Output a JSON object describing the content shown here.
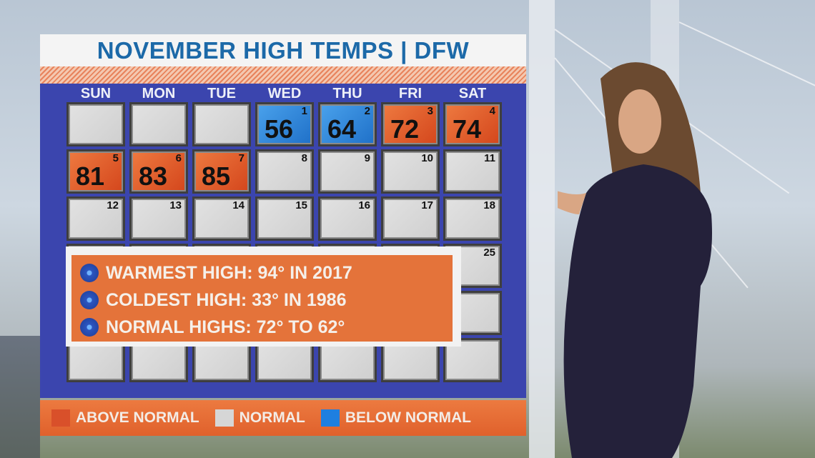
{
  "title": "NOVEMBER HIGH TEMPS | DFW",
  "days": [
    "SUN",
    "MON",
    "TUE",
    "WED",
    "THU",
    "FRI",
    "SAT"
  ],
  "colors": {
    "above": "#d9502a",
    "normal": "#d6d6d6",
    "below": "#1e7fe0",
    "panel": "#3b45ae",
    "accent": "#e4733a",
    "title": "#1c69a8"
  },
  "weeks": [
    [
      {
        "day": null,
        "temp": null,
        "status": "normal"
      },
      {
        "day": null,
        "temp": null,
        "status": "normal"
      },
      {
        "day": null,
        "temp": null,
        "status": "normal"
      },
      {
        "day": "1",
        "temp": "56",
        "status": "below"
      },
      {
        "day": "2",
        "temp": "64",
        "status": "below"
      },
      {
        "day": "3",
        "temp": "72",
        "status": "above"
      },
      {
        "day": "4",
        "temp": "74",
        "status": "above"
      }
    ],
    [
      {
        "day": "5",
        "temp": "81",
        "status": "above"
      },
      {
        "day": "6",
        "temp": "83",
        "status": "above"
      },
      {
        "day": "7",
        "temp": "85",
        "status": "above"
      },
      {
        "day": "8",
        "temp": null,
        "status": "normal"
      },
      {
        "day": "9",
        "temp": null,
        "status": "normal"
      },
      {
        "day": "10",
        "temp": null,
        "status": "normal"
      },
      {
        "day": "11",
        "temp": null,
        "status": "normal"
      }
    ],
    [
      {
        "day": "12",
        "temp": null,
        "status": "normal"
      },
      {
        "day": "13",
        "temp": null,
        "status": "normal"
      },
      {
        "day": "14",
        "temp": null,
        "status": "normal"
      },
      {
        "day": "15",
        "temp": null,
        "status": "normal"
      },
      {
        "day": "16",
        "temp": null,
        "status": "normal"
      },
      {
        "day": "17",
        "temp": null,
        "status": "normal"
      },
      {
        "day": "18",
        "temp": null,
        "status": "normal"
      }
    ],
    [
      {
        "day": null,
        "temp": null,
        "status": "normal"
      },
      {
        "day": null,
        "temp": null,
        "status": "normal"
      },
      {
        "day": null,
        "temp": null,
        "status": "normal"
      },
      {
        "day": null,
        "temp": null,
        "status": "normal"
      },
      {
        "day": null,
        "temp": null,
        "status": "normal"
      },
      {
        "day": null,
        "temp": null,
        "status": "normal"
      },
      {
        "day": "25",
        "temp": null,
        "status": "normal"
      }
    ],
    [
      {
        "day": null,
        "temp": null,
        "status": "normal"
      },
      {
        "day": null,
        "temp": null,
        "status": "normal"
      },
      {
        "day": null,
        "temp": null,
        "status": "normal"
      },
      {
        "day": null,
        "temp": null,
        "status": "normal"
      },
      {
        "day": null,
        "temp": null,
        "status": "normal"
      },
      {
        "day": null,
        "temp": null,
        "status": "normal"
      },
      {
        "day": null,
        "temp": null,
        "status": "normal"
      }
    ],
    [
      {
        "day": null,
        "temp": null,
        "status": "normal"
      },
      {
        "day": null,
        "temp": null,
        "status": "normal"
      },
      {
        "day": null,
        "temp": null,
        "status": "normal"
      },
      {
        "day": null,
        "temp": null,
        "status": "normal"
      },
      {
        "day": null,
        "temp": null,
        "status": "normal"
      },
      {
        "day": null,
        "temp": null,
        "status": "normal"
      },
      {
        "day": null,
        "temp": null,
        "status": "normal"
      }
    ]
  ],
  "info": [
    "WARMEST HIGH: 94° IN 2017",
    "COLDEST HIGH: 33° IN 1986",
    "NORMAL HIGHS: 72° TO 62°"
  ],
  "legend": [
    {
      "label": "ABOVE NORMAL",
      "status": "above"
    },
    {
      "label": "NORMAL",
      "status": "normal"
    },
    {
      "label": "BELOW NORMAL",
      "status": "below"
    }
  ]
}
